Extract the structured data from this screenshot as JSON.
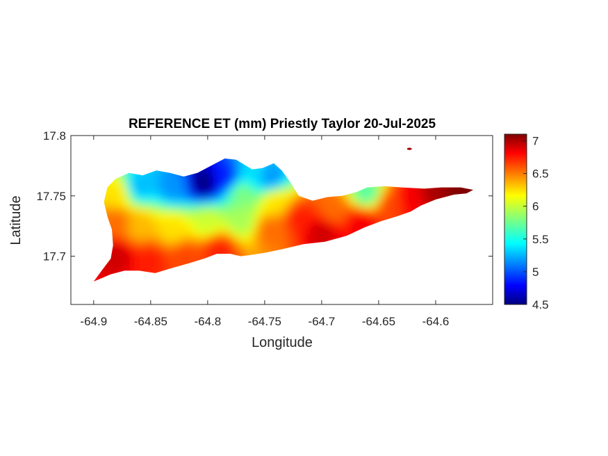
{
  "chart_data": {
    "type": "heatmap",
    "title": "REFERENCE ET (mm) Priestly Taylor 20-Jul-2025",
    "xlabel": "Longitude",
    "ylabel": "Latitude",
    "xlim": [
      -64.92,
      -64.55
    ],
    "ylim": [
      17.66,
      17.8
    ],
    "xticks": [
      -64.9,
      -64.85,
      -64.8,
      -64.75,
      -64.7,
      -64.65,
      -64.6
    ],
    "xtick_labels": [
      "-64.9",
      "-64.85",
      "-64.8",
      "-64.75",
      "-64.7",
      "-64.65",
      "-64.6"
    ],
    "yticks": [
      17.7,
      17.75,
      17.8
    ],
    "ytick_labels": [
      "17.7",
      "17.75",
      "17.8"
    ],
    "colorbar": {
      "colormap": "jet",
      "range": [
        4.5,
        7.1
      ],
      "ticks": [
        4.5,
        5,
        5.5,
        6,
        6.5,
        7
      ],
      "tick_labels": [
        "4.5",
        "5",
        "5.5",
        "6",
        "6.5",
        "7"
      ]
    },
    "outline": [
      [
        -64.9,
        17.679
      ],
      [
        -64.893,
        17.688
      ],
      [
        -64.885,
        17.698
      ],
      [
        -64.883,
        17.709
      ],
      [
        -64.884,
        17.722
      ],
      [
        -64.888,
        17.733
      ],
      [
        -64.891,
        17.745
      ],
      [
        -64.888,
        17.757
      ],
      [
        -64.881,
        17.764
      ],
      [
        -64.869,
        17.769
      ],
      [
        -64.857,
        17.767
      ],
      [
        -64.845,
        17.771
      ],
      [
        -64.833,
        17.769
      ],
      [
        -64.821,
        17.766
      ],
      [
        -64.809,
        17.769
      ],
      [
        -64.797,
        17.775
      ],
      [
        -64.785,
        17.781
      ],
      [
        -64.775,
        17.78
      ],
      [
        -64.768,
        17.776
      ],
      [
        -64.761,
        17.772
      ],
      [
        -64.752,
        17.773
      ],
      [
        -64.742,
        17.777
      ],
      [
        -64.735,
        17.771
      ],
      [
        -64.728,
        17.762
      ],
      [
        -64.72,
        17.75
      ],
      [
        -64.708,
        17.746
      ],
      [
        -64.695,
        17.749
      ],
      [
        -64.682,
        17.75
      ],
      [
        -64.67,
        17.753
      ],
      [
        -64.66,
        17.757
      ],
      [
        -64.645,
        17.758
      ],
      [
        -64.63,
        17.757
      ],
      [
        -64.61,
        17.756
      ],
      [
        -64.595,
        17.757
      ],
      [
        -64.578,
        17.757
      ],
      [
        -64.567,
        17.755
      ],
      [
        -64.573,
        17.752
      ],
      [
        -64.584,
        17.751
      ],
      [
        -64.6,
        17.747
      ],
      [
        -64.613,
        17.742
      ],
      [
        -64.622,
        17.737
      ],
      [
        -64.634,
        17.733
      ],
      [
        -64.648,
        17.729
      ],
      [
        -64.662,
        17.724
      ],
      [
        -64.678,
        17.717
      ],
      [
        -64.697,
        17.712
      ],
      [
        -64.716,
        17.71
      ],
      [
        -64.734,
        17.706
      ],
      [
        -64.749,
        17.703
      ],
      [
        -64.762,
        17.701
      ],
      [
        -64.771,
        17.7
      ],
      [
        -64.78,
        17.702
      ],
      [
        -64.792,
        17.702
      ],
      [
        -64.803,
        17.698
      ],
      [
        -64.817,
        17.694
      ],
      [
        -64.832,
        17.69
      ],
      [
        -64.846,
        17.686
      ],
      [
        -64.86,
        17.688
      ],
      [
        -64.873,
        17.688
      ],
      [
        -64.885,
        17.685
      ]
    ],
    "extra_points": [
      [
        -64.623,
        17.789,
        7.0
      ]
    ],
    "value_field": [
      {
        "lon": -64.88,
        "lat": 17.7,
        "value": 6.9
      },
      {
        "lon": -64.85,
        "lat": 17.697,
        "value": 6.7
      },
      {
        "lon": -64.82,
        "lat": 17.7,
        "value": 6.6
      },
      {
        "lon": -64.79,
        "lat": 17.706,
        "value": 6.7
      },
      {
        "lon": -64.88,
        "lat": 17.728,
        "value": 6.5
      },
      {
        "lon": -64.86,
        "lat": 17.725,
        "value": 6.3
      },
      {
        "lon": -64.83,
        "lat": 17.722,
        "value": 6.2
      },
      {
        "lon": -64.8,
        "lat": 17.728,
        "value": 6.0
      },
      {
        "lon": -64.77,
        "lat": 17.73,
        "value": 5.9
      },
      {
        "lon": -64.745,
        "lat": 17.722,
        "value": 6.5
      },
      {
        "lon": -64.88,
        "lat": 17.752,
        "value": 6.2
      },
      {
        "lon": -64.86,
        "lat": 17.758,
        "value": 5.3
      },
      {
        "lon": -64.83,
        "lat": 17.758,
        "value": 5.2
      },
      {
        "lon": -64.803,
        "lat": 17.761,
        "value": 4.5
      },
      {
        "lon": -64.785,
        "lat": 17.765,
        "value": 4.9
      },
      {
        "lon": -64.77,
        "lat": 17.752,
        "value": 5.8
      },
      {
        "lon": -64.76,
        "lat": 17.768,
        "value": 5.4
      },
      {
        "lon": -64.745,
        "lat": 17.765,
        "value": 5.2
      },
      {
        "lon": -64.74,
        "lat": 17.745,
        "value": 6.2
      },
      {
        "lon": -64.72,
        "lat": 17.732,
        "value": 6.7
      },
      {
        "lon": -64.7,
        "lat": 17.72,
        "value": 6.9
      },
      {
        "lon": -64.69,
        "lat": 17.738,
        "value": 6.5
      },
      {
        "lon": -64.665,
        "lat": 17.728,
        "value": 6.8
      },
      {
        "lon": -64.66,
        "lat": 17.752,
        "value": 5.7
      },
      {
        "lon": -64.64,
        "lat": 17.742,
        "value": 6.6
      },
      {
        "lon": -64.62,
        "lat": 17.746,
        "value": 6.8
      },
      {
        "lon": -64.6,
        "lat": 17.752,
        "value": 7.0
      },
      {
        "lon": -64.58,
        "lat": 17.754,
        "value": 7.1
      }
    ]
  }
}
